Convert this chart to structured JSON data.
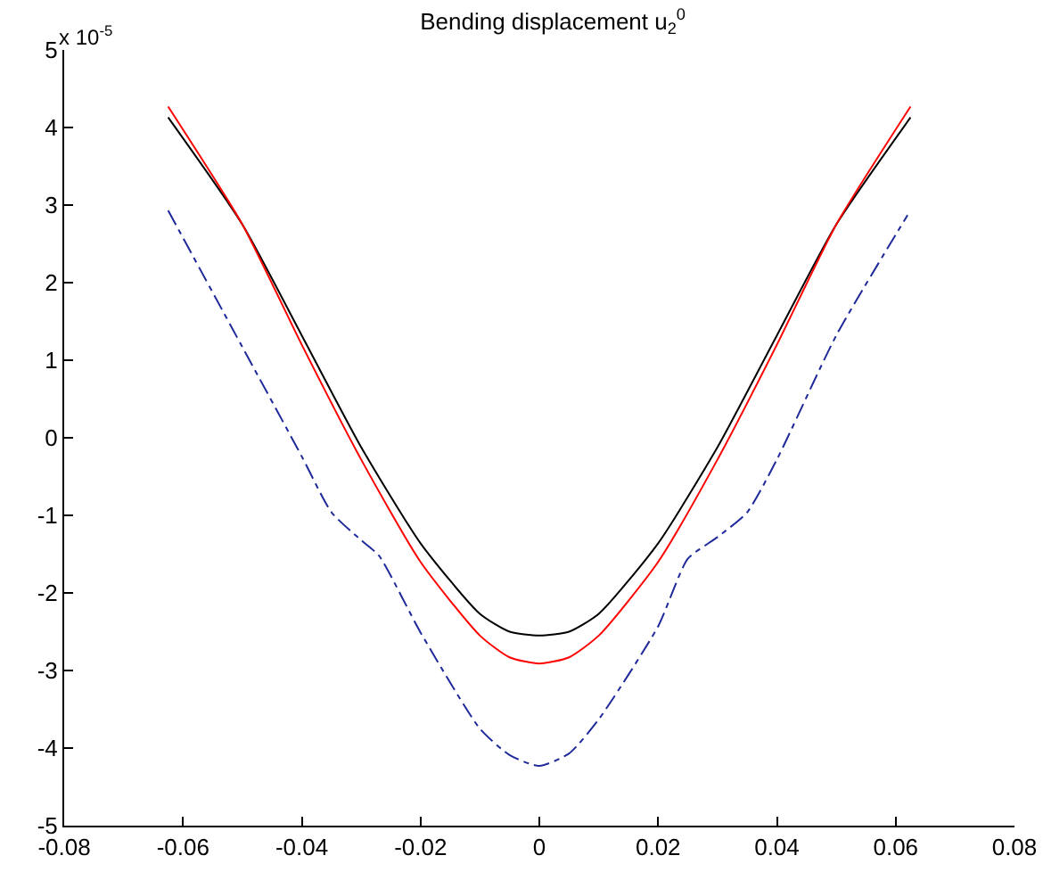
{
  "chart_data": {
    "type": "line",
    "title": "Bending displacement u$_{2}$$^{0}$",
    "annotations": [
      "x 10$^{-5}$"
    ],
    "xlim": [
      -0.08,
      0.08
    ],
    "xticks": [
      -0.08,
      -0.06,
      -0.04,
      -0.02,
      0,
      0.02,
      0.04,
      0.06,
      0.08
    ],
    "ylim": [
      -5,
      5
    ],
    "yticks": [
      -5,
      -4,
      -3,
      -2,
      -1,
      0,
      1,
      2,
      3,
      4,
      5
    ],
    "grid": false,
    "marker": "none",
    "series": [
      {
        "color": "#000000",
        "line_style": "solid",
        "x": [
          -0.0625,
          -0.05,
          -0.04,
          -0.03,
          -0.02,
          -0.01,
          -0.005,
          0,
          0.005,
          0.01,
          0.02,
          0.03,
          0.04,
          0.05,
          0.0625
        ],
        "values": [
          4.13,
          2.75,
          1.32,
          -0.12,
          -1.36,
          -2.27,
          -2.5,
          -2.55,
          -2.5,
          -2.27,
          -1.36,
          -0.12,
          1.32,
          2.75,
          4.13
        ]
      },
      {
        "color": "#ff0000",
        "line_style": "solid",
        "x": [
          -0.0625,
          -0.05,
          -0.04,
          -0.03,
          -0.02,
          -0.01,
          -0.005,
          0,
          0.005,
          0.01,
          0.02,
          0.03,
          0.04,
          0.05,
          0.0625
        ],
        "values": [
          4.27,
          2.75,
          1.2,
          -0.28,
          -1.6,
          -2.55,
          -2.83,
          -2.91,
          -2.83,
          -2.55,
          -1.6,
          -0.28,
          1.2,
          2.75,
          4.27
        ]
      },
      {
        "color": "#1f2a9a",
        "line_style": "dashdot",
        "x": [
          -0.0625,
          -0.05,
          -0.04,
          -0.035,
          -0.03,
          -0.027,
          -0.02,
          -0.01,
          -0.005,
          0,
          0.005,
          0.01,
          0.02,
          0.025,
          0.03,
          0.035,
          0.04,
          0.05,
          0.062
        ],
        "values": [
          2.93,
          1.17,
          -0.24,
          -0.96,
          -1.32,
          -1.52,
          -2.51,
          -3.75,
          -4.09,
          -4.23,
          -4.07,
          -3.63,
          -2.43,
          -1.56,
          -1.28,
          -0.96,
          -0.28,
          1.32,
          2.87
        ]
      }
    ]
  }
}
